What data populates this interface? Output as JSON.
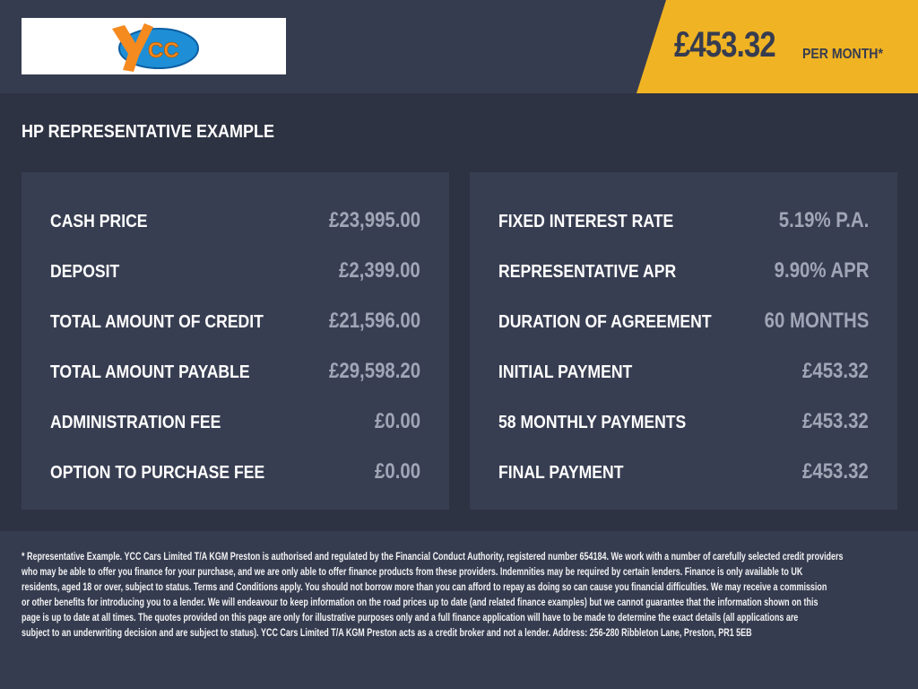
{
  "header": {
    "logo_text": "YCC",
    "monthly_price": "£453.32",
    "per_month_label": "PER MONTH*",
    "accent_color": "#f0b323"
  },
  "section_title": "HP REPRESENTATIVE EXAMPLE",
  "left_panel": [
    {
      "label": "CASH PRICE",
      "value": "£23,995.00"
    },
    {
      "label": "DEPOSIT",
      "value": "£2,399.00"
    },
    {
      "label": "TOTAL AMOUNT OF CREDIT",
      "value": "£21,596.00"
    },
    {
      "label": "TOTAL AMOUNT PAYABLE",
      "value": "£29,598.20"
    },
    {
      "label": "ADMINISTRATION FEE",
      "value": "£0.00"
    },
    {
      "label": "OPTION TO PURCHASE FEE",
      "value": "£0.00"
    }
  ],
  "right_panel": [
    {
      "label": "FIXED INTEREST RATE",
      "value": "5.19% P.A."
    },
    {
      "label": "REPRESENTATIVE APR",
      "value": "9.90% APR"
    },
    {
      "label": "DURATION OF AGREEMENT",
      "value": "60 MONTHS"
    },
    {
      "label": "INITIAL PAYMENT",
      "value": "£453.32"
    },
    {
      "label": "58 MONTHLY PAYMENTS",
      "value": "£453.32"
    },
    {
      "label": "FINAL PAYMENT",
      "value": "£453.32"
    }
  ],
  "disclaimer_lines": [
    "* Representative Example. YCC Cars Limited T/A KGM Preston  is authorised and regulated by the Financial Conduct Authority, registered number 654184. We work with a number of carefully selected credit providers",
    "who may be able to offer you finance for your purchase, and we are only able to offer finance products from these providers. Indemnities may be required by certain lenders. Finance is only available to UK",
    "residents, aged 18 or over, subject to status. Terms and Conditions apply. You should not borrow more than you can afford to repay as doing so can cause you financial difficulties. We may receive a commission",
    "or other benefits for introducing you to a lender. We will endeavour to keep information on the road prices up to date (and related finance examples) but we cannot guarantee that the information shown on this",
    "page is up to date at all times. The quotes provided on this page are only for illustrative purposes only and a full finance application will have to be made to determine the exact details (all applications are",
    "subject to an underwriting decision and are subject to status). YCC Cars Limited T/A KGM Preston  acts as a credit broker and not a lender. Address: 256-280 Ribbleton Lane, Preston, PR1 5EB"
  ]
}
